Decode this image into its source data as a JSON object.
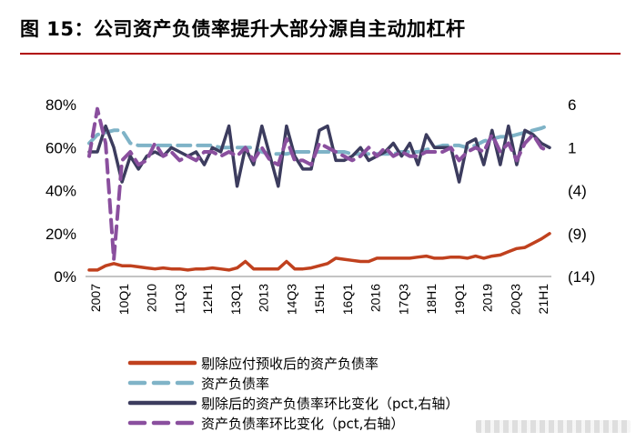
{
  "title": "图 15：公司资产负债率提升大部分源自主动加杠杆",
  "chart_data": {
    "type": "line",
    "x_tick_labels": [
      "2007",
      "10Q1",
      "2010",
      "11Q3",
      "12H1",
      "13Q1",
      "2013",
      "14Q3",
      "15H1",
      "16Q1",
      "2016",
      "17Q3",
      "18H1",
      "19Q1",
      "2019",
      "20Q3",
      "21H1"
    ],
    "left_axis": {
      "ticks": [
        "80%",
        "60%",
        "40%",
        "20%",
        "0%"
      ],
      "ylim": [
        0,
        80
      ],
      "unit": "%"
    },
    "right_axis": {
      "ticks": [
        "6",
        "1",
        "(4)",
        "(9)",
        "(14)"
      ],
      "ylim": [
        -14,
        6
      ]
    },
    "x_count": 57,
    "series": [
      {
        "name": "剔除应付预收后的资产负债率",
        "axis": "left",
        "color": "#c0411e",
        "style": "solid",
        "values": [
          3,
          3,
          5,
          6,
          5,
          5,
          4.5,
          4,
          3.5,
          4,
          3.5,
          3.5,
          3,
          3.5,
          3.5,
          4,
          3.5,
          3,
          4,
          7,
          3.5,
          3.5,
          3.5,
          3.5,
          7,
          3.5,
          3.5,
          4,
          5,
          6,
          8.5,
          8,
          7.5,
          7,
          7,
          8.5,
          8.5,
          8.5,
          8.5,
          8.5,
          9,
          9.5,
          8.5,
          8.5,
          9,
          9,
          8.5,
          9.5,
          8.5,
          9.5,
          10,
          11.5,
          13,
          13.5,
          15.5,
          17.5,
          20
        ]
      },
      {
        "name": "资产负债率",
        "axis": "left",
        "color": "#7fb3c7",
        "style": "dashed",
        "values": [
          62,
          66,
          67,
          68,
          68,
          62,
          61,
          61,
          61,
          61,
          61,
          61,
          61,
          61,
          61,
          61,
          60,
          60,
          60,
          60,
          60,
          58,
          57,
          57,
          57,
          58,
          58,
          58,
          58,
          58,
          58,
          58,
          57,
          57,
          57,
          57,
          57,
          57,
          58,
          58,
          58,
          59,
          60,
          61,
          61,
          61,
          60,
          61,
          63,
          64,
          65,
          65,
          66,
          67,
          68,
          69,
          70.5
        ]
      },
      {
        "name": "剔除后的资产负债率环比变化（pct,右轴）",
        "axis": "right",
        "color": "#3c3c5e",
        "style": "solid",
        "values": [
          0.5,
          0.5,
          3.5,
          1,
          -3,
          0,
          -1.5,
          0,
          0.5,
          0,
          1,
          0.5,
          0,
          0.5,
          -1,
          1,
          0.5,
          3.5,
          -3.5,
          1,
          -1,
          3.5,
          0,
          -3.5,
          3.5,
          0,
          -1.5,
          -1.5,
          3,
          3.5,
          -0.5,
          -0.5,
          0,
          1,
          -0.5,
          0,
          0.5,
          1.5,
          0,
          1.5,
          -1,
          2.5,
          1,
          1,
          1,
          -3,
          1.5,
          2,
          -1,
          3,
          -1,
          3.5,
          -1,
          3,
          2.5,
          1.5,
          1
        ]
      },
      {
        "name": "资产负债率环比变化（pct,右轴）",
        "axis": "right",
        "color": "#8a4f9e",
        "style": "dashed",
        "values": [
          0,
          5.5,
          1.5,
          -12,
          -0.5,
          0.5,
          -1,
          -0.5,
          1.5,
          0,
          0.5,
          -0.5,
          0,
          -0.5,
          0.5,
          0.5,
          0,
          0.5,
          0,
          1,
          -0.5,
          1,
          -0.5,
          -1,
          2,
          -0.5,
          -0.5,
          -1,
          1.5,
          1,
          0.5,
          0,
          -0.5,
          0,
          1,
          0,
          1,
          0,
          0.5,
          0,
          0,
          0.5,
          0.5,
          0.5,
          1,
          -0.5,
          0.5,
          1,
          0.5,
          2.5,
          0.5,
          1.5,
          -0.5,
          1.5,
          2.5,
          1,
          0.5
        ]
      }
    ],
    "legend_position": "bottom",
    "grid": false
  }
}
